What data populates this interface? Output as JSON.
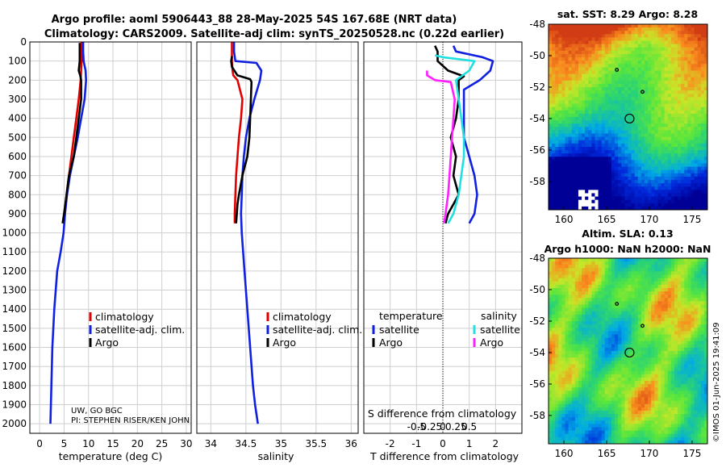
{
  "header": {
    "line1": "Argo profile: aoml 5906443_88 28-May-2025 54S 167.68E (NRT data)",
    "line2": "Climatology: CARS2009. Satellite-adj clim: synTS_20250528.nc (0.22d earlier)"
  },
  "depth_axis": {
    "ylim": [
      0,
      2050
    ],
    "ticks": [
      0,
      100,
      200,
      300,
      400,
      500,
      600,
      700,
      800,
      900,
      1000,
      1100,
      1200,
      1300,
      1400,
      1500,
      1600,
      1700,
      1800,
      1900,
      2000
    ]
  },
  "colors": {
    "climatology": "#e00000",
    "satellite": "#1020e0",
    "argo": "#000000",
    "sal_sat": "#20e0e0",
    "sal_argo": "#ff20ff"
  },
  "chart_data": [
    {
      "type": "line",
      "id": "temperature",
      "xlabel": "temperature (deg C)",
      "xlim": [
        -2,
        31
      ],
      "xticks": [
        0,
        5,
        10,
        15,
        20,
        25,
        30
      ],
      "legend": [
        "climatology",
        "satellite-adj. clim.",
        "Argo"
      ],
      "annotation": [
        "UW, GO BGC",
        "PI: STEPHEN RISER/KEN JOHN"
      ],
      "series": [
        {
          "name": "climatology",
          "color": "#e00000",
          "x": [
            8.6,
            8.6,
            8.6,
            8.5,
            8.4,
            8.0,
            7.5,
            7.0,
            6.5,
            6.0,
            5.5,
            5.0
          ],
          "y": [
            0,
            50,
            100,
            150,
            200,
            300,
            400,
            500,
            600,
            700,
            800,
            950
          ]
        },
        {
          "name": "satellite-adj. clim.",
          "color": "#1020e0",
          "x": [
            8.9,
            8.9,
            9.0,
            9.4,
            9.5,
            9.2,
            8.5,
            7.8,
            7.0,
            6.2,
            5.6,
            5.2,
            4.9,
            4.3,
            3.6,
            3.3,
            3.0,
            2.8,
            2.6,
            2.4,
            2.2
          ],
          "y": [
            0,
            50,
            100,
            150,
            200,
            300,
            400,
            500,
            600,
            700,
            800,
            900,
            1000,
            1100,
            1200,
            1300,
            1400,
            1500,
            1600,
            1800,
            2000
          ]
        },
        {
          "name": "Argo",
          "color": "#000000",
          "x": [
            8.2,
            8.2,
            8.2,
            8.0,
            8.3,
            8.5,
            8.5,
            8.0,
            7.5,
            7.0,
            6.5,
            6.0,
            5.5,
            5.0,
            4.7
          ],
          "y": [
            5,
            50,
            100,
            150,
            175,
            200,
            300,
            400,
            500,
            600,
            650,
            700,
            800,
            900,
            950
          ]
        }
      ]
    },
    {
      "type": "line",
      "id": "salinity",
      "xlabel": "salinity",
      "xlim": [
        33.8,
        36.1
      ],
      "xticks": [
        34,
        34.5,
        35,
        35.5,
        36
      ],
      "legend": [
        "climatology",
        "satellite-adj. clim.",
        "Argo"
      ],
      "series": [
        {
          "name": "climatology",
          "color": "#e00000",
          "x": [
            34.3,
            34.3,
            34.31,
            34.32,
            34.38,
            34.45,
            34.43,
            34.4,
            34.38,
            34.36,
            34.35,
            34.34,
            34.34
          ],
          "y": [
            0,
            100,
            150,
            175,
            200,
            300,
            400,
            500,
            600,
            700,
            800,
            900,
            950
          ]
        },
        {
          "name": "satellite-adj. clim.",
          "color": "#1020e0",
          "x": [
            34.33,
            34.33,
            34.35,
            34.65,
            34.72,
            34.7,
            34.62,
            34.55,
            34.5,
            34.47,
            34.45,
            34.44,
            34.43,
            34.44,
            34.48,
            34.52,
            34.56,
            34.6,
            34.63,
            34.67
          ],
          "y": [
            0,
            50,
            100,
            110,
            150,
            200,
            300,
            400,
            500,
            600,
            700,
            800,
            900,
            1000,
            1200,
            1400,
            1600,
            1800,
            1900,
            2000
          ]
        },
        {
          "name": "Argo",
          "color": "#000000",
          "x": [
            34.3,
            34.29,
            34.3,
            34.38,
            34.56,
            34.58,
            34.57,
            34.56,
            34.55,
            34.52,
            34.45,
            34.4,
            34.38,
            34.37,
            34.36
          ],
          "y": [
            75,
            100,
            130,
            175,
            195,
            210,
            300,
            400,
            500,
            600,
            700,
            800,
            850,
            900,
            950
          ]
        }
      ]
    },
    {
      "type": "line",
      "id": "difference",
      "xlabel": "T difference from climatology",
      "xlabel_top": "S difference from climatology",
      "xlim": [
        -3,
        3
      ],
      "xticks": [
        -2,
        -1,
        0,
        1,
        2
      ],
      "xticks_top": [
        "-0.5",
        "-0.25",
        "0",
        "0.25",
        "0.5"
      ],
      "legend_headers": [
        "temperature",
        "salinity"
      ],
      "legend": [
        "satellite",
        "Argo",
        "satellite",
        "Argo"
      ],
      "series": [
        {
          "name": "temperature satellite",
          "color": "#1020e0",
          "x": [
            0.4,
            0.5,
            1.5,
            1.9,
            1.8,
            1.4,
            0.8,
            0.8,
            0.8,
            1.0,
            1.2,
            1.3,
            1.2,
            1.0
          ],
          "y": [
            20,
            50,
            80,
            100,
            150,
            200,
            250,
            400,
            500,
            600,
            700,
            800,
            900,
            950
          ]
        },
        {
          "name": "temperature Argo",
          "color": "#000000",
          "x": [
            -0.3,
            -0.2,
            -0.2,
            0.2,
            0.8,
            0.6,
            0.6,
            0.5,
            0.3,
            0.5,
            0.4,
            0.6,
            0.4,
            0.2,
            0.1
          ],
          "y": [
            20,
            50,
            100,
            150,
            180,
            200,
            300,
            400,
            500,
            600,
            700,
            800,
            850,
            900,
            950
          ]
        },
        {
          "name": "salinity satellite",
          "color": "#20e0e0",
          "x": [
            -0.3,
            0.0,
            1.2,
            1.0,
            0.5,
            0.6,
            0.7,
            0.8,
            0.8,
            0.7,
            0.6,
            0.4,
            0.2
          ],
          "y": [
            70,
            80,
            100,
            150,
            200,
            300,
            400,
            500,
            600,
            700,
            800,
            900,
            950
          ]
        },
        {
          "name": "salinity Argo",
          "color": "#ff20ff",
          "x": [
            -0.6,
            -0.6,
            -0.3,
            0.3,
            0.45,
            0.4,
            0.35,
            0.3,
            0.25,
            0.2,
            0.15,
            0.1,
            0.05
          ],
          "y": [
            150,
            175,
            200,
            210,
            300,
            400,
            500,
            600,
            700,
            800,
            850,
            900,
            950
          ]
        }
      ]
    },
    {
      "type": "heatmap",
      "id": "sst_map",
      "title": "sat. SST: 8.29 Argo: 8.28",
      "xticks": [
        160,
        165,
        170,
        175
      ],
      "yticks": [
        -48,
        -50,
        -52,
        -54,
        -56,
        -58
      ],
      "xlim": [
        158.2,
        176.8
      ],
      "ylim": [
        -59.8,
        -48
      ],
      "markers": [
        [
          167.68,
          -54
        ],
        [
          166.2,
          -50.9
        ],
        [
          169.2,
          -52.3
        ]
      ]
    },
    {
      "type": "heatmap",
      "id": "sla_map",
      "title": "Altim. SLA: 0.13",
      "subtitle": "Argo h1000: NaN h2000: NaN",
      "xticks": [
        160,
        165,
        170,
        175
      ],
      "yticks": [
        -48,
        -50,
        -52,
        -54,
        -56,
        -58
      ],
      "xlim": [
        158.2,
        176.8
      ],
      "ylim": [
        -59.8,
        -48
      ],
      "markers": [
        [
          167.68,
          -54
        ],
        [
          166.2,
          -50.9
        ],
        [
          169.2,
          -52.3
        ]
      ]
    }
  ],
  "credit": "©IMOS 01-Jun-2025 19:41:09"
}
